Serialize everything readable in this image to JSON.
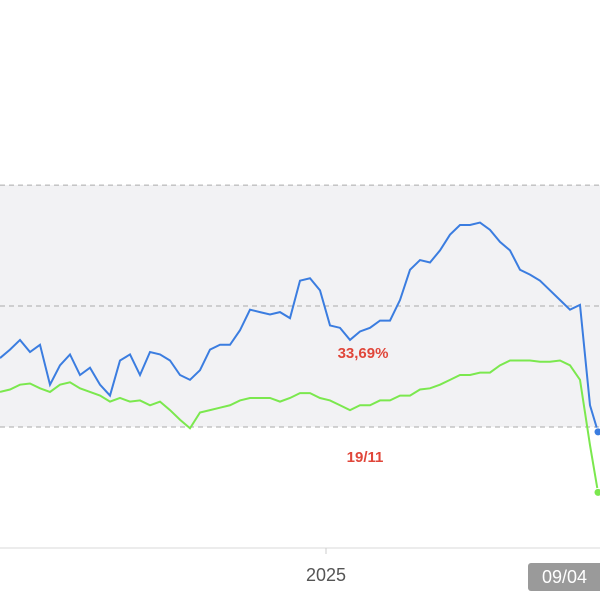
{
  "chart_data": {
    "type": "line",
    "x": [
      0,
      1,
      2,
      3,
      4,
      5,
      6,
      7,
      8,
      9,
      10,
      11,
      12,
      13,
      14,
      15,
      16,
      17,
      18,
      19,
      20,
      21,
      22,
      23,
      24,
      25,
      26,
      27,
      28,
      29,
      30,
      31,
      32,
      33,
      34,
      35,
      36,
      37,
      38,
      39,
      40,
      41,
      42,
      43,
      44,
      45,
      46,
      47,
      48,
      49,
      50,
      51,
      52,
      53,
      54,
      55,
      56,
      57,
      58,
      59,
      59.8
    ],
    "series": [
      {
        "color": "#3b7de0",
        "values": [
          1.57,
          1.64,
          1.72,
          1.62,
          1.68,
          1.35,
          1.51,
          1.6,
          1.43,
          1.49,
          1.35,
          1.26,
          1.55,
          1.6,
          1.43,
          1.62,
          1.6,
          1.55,
          1.43,
          1.39,
          1.47,
          1.64,
          1.68,
          1.68,
          1.8,
          1.97,
          1.95,
          1.93,
          1.95,
          1.9,
          2.21,
          2.23,
          2.13,
          1.84,
          1.82,
          1.72,
          1.79,
          1.82,
          1.88,
          1.88,
          2.05,
          2.3,
          2.38,
          2.36,
          2.46,
          2.59,
          2.67,
          2.67,
          2.69,
          2.63,
          2.53,
          2.46,
          2.3,
          2.26,
          2.21,
          2.13,
          2.05,
          1.97,
          2.01,
          1.18,
          0.96
        ]
      },
      {
        "color": "#7be84e",
        "values": [
          1.29,
          1.31,
          1.35,
          1.36,
          1.32,
          1.29,
          1.35,
          1.37,
          1.32,
          1.29,
          1.26,
          1.21,
          1.24,
          1.21,
          1.22,
          1.18,
          1.21,
          1.14,
          1.06,
          0.99,
          1.12,
          1.14,
          1.16,
          1.18,
          1.22,
          1.24,
          1.24,
          1.24,
          1.21,
          1.24,
          1.28,
          1.28,
          1.24,
          1.22,
          1.18,
          1.14,
          1.18,
          1.18,
          1.22,
          1.22,
          1.26,
          1.26,
          1.31,
          1.32,
          1.35,
          1.39,
          1.43,
          1.43,
          1.45,
          1.45,
          1.51,
          1.55,
          1.55,
          1.55,
          1.54,
          1.54,
          1.55,
          1.51,
          1.39,
          0.85,
          0.46
        ]
      }
    ],
    "xlim": [
      0,
      60
    ],
    "ylim": [
      0,
      4.53
    ],
    "xticks": [
      {
        "value": 32.6,
        "label": "2025"
      }
    ],
    "yticks": [
      1,
      2,
      3
    ],
    "grid": true,
    "annotations": [
      {
        "text": "33,69%",
        "color": "#e0463a"
      },
      {
        "text": "19/11",
        "color": "#e0463a"
      }
    ],
    "cursor_label": {
      "value": 59.8,
      "label": "09/04"
    }
  }
}
